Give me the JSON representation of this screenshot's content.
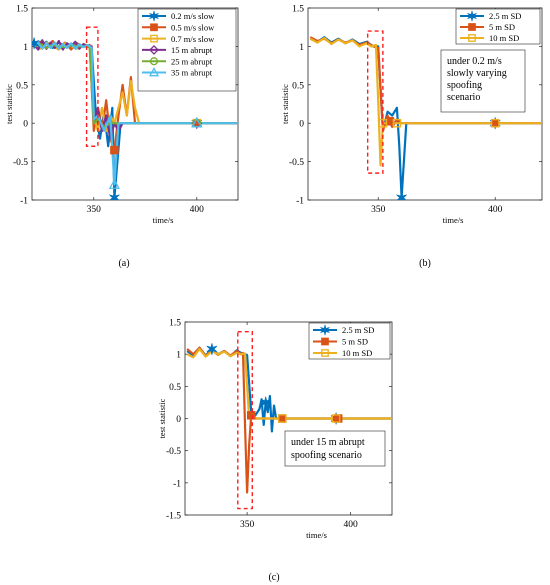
{
  "panels": [
    {
      "caption": "(a)",
      "ylabel": "test statistic",
      "xlabel": "time/s",
      "xlim": [
        320,
        420
      ],
      "ylim": [
        -1,
        1.5
      ],
      "xticks": [
        350,
        400
      ],
      "yticks": [
        -1,
        -0.5,
        0,
        0.5,
        1,
        1.5
      ],
      "ytick_labels": [
        "-1",
        "-0.5",
        "0",
        "0.5",
        "1",
        "1.5"
      ],
      "xtick_labels": [
        "350",
        "400"
      ],
      "highlight_box": {
        "x": [
          346.5,
          352
        ],
        "y": [
          -0.3,
          1.25
        ]
      },
      "legend": {
        "position": "top-right"
      },
      "annotation": [],
      "series": [
        {
          "name": "0.2 m/s slow",
          "color": "#0072BD",
          "marker": "star",
          "x": [
            321,
            324,
            327,
            330,
            333,
            336,
            339,
            342,
            345,
            348,
            349,
            351,
            353,
            355,
            357,
            359,
            360,
            363,
            366,
            372,
            380,
            390,
            400,
            410,
            420
          ],
          "y": [
            1.04,
            1.0,
            1.06,
            0.98,
            1.05,
            1.0,
            1.03,
            0.98,
            1.02,
            0.99,
            0.98,
            0.1,
            -0.2,
            0.15,
            -0.3,
            0.2,
            -0.97,
            0.0,
            0.0,
            0.0,
            0.0,
            0.0,
            0.0,
            0.0,
            0.0
          ],
          "marker_x": [
            321,
            360,
            400
          ]
        },
        {
          "name": "0.5 m/s slow",
          "color": "#D95319",
          "marker": "square",
          "x": [
            321,
            324,
            327,
            330,
            333,
            336,
            339,
            342,
            345,
            348,
            350,
            352,
            354,
            356,
            358,
            360,
            362,
            364,
            366,
            368,
            370,
            400,
            420
          ],
          "y": [
            1.0,
            1.06,
            0.97,
            1.07,
            0.99,
            1.05,
            0.96,
            1.04,
            1.0,
            1.02,
            -0.1,
            0.2,
            -0.1,
            0.3,
            -0.2,
            -0.35,
            0.1,
            0.5,
            0.1,
            0.6,
            0.0,
            0.0,
            0.0
          ],
          "marker_x": [
            360,
            400
          ]
        },
        {
          "name": "0.7 m/s slow",
          "color": "#EDB120",
          "marker": "square-open",
          "x": [
            321,
            324,
            327,
            330,
            333,
            336,
            339,
            342,
            345,
            348,
            350,
            352,
            354,
            356,
            358,
            360,
            362,
            364,
            366,
            368,
            370,
            372,
            400,
            420
          ],
          "y": [
            1.0,
            0.97,
            1.05,
            1.0,
            0.96,
            1.04,
            1.0,
            0.97,
            1.03,
            1.0,
            0.1,
            -0.1,
            0.2,
            -0.1,
            0.1,
            0.0,
            0.2,
            0.4,
            0.1,
            0.55,
            0.2,
            0.0,
            0.0,
            0.0
          ],
          "marker_x": [
            400
          ]
        },
        {
          "name": "15 m abrupt",
          "color": "#7E2F8E",
          "marker": "diamond-open",
          "x": [
            321,
            323,
            325,
            327,
            329,
            331,
            333,
            335,
            337,
            339,
            341,
            343,
            345,
            347,
            349,
            350,
            352,
            354,
            356,
            358,
            360,
            362,
            364,
            400,
            420
          ],
          "y": [
            1.02,
            0.96,
            1.08,
            0.97,
            1.05,
            0.98,
            1.07,
            0.96,
            1.04,
            1.0,
            1.06,
            0.97,
            1.03,
            1.0,
            1.0,
            0.0,
            0.2,
            -0.1,
            0.1,
            -0.2,
            0.0,
            -0.1,
            0.0,
            0.0,
            0.0
          ],
          "marker_x": [
            400
          ]
        },
        {
          "name": "25 m abrupt",
          "color": "#77AC30",
          "marker": "circle-open",
          "x": [
            321,
            324,
            327,
            330,
            333,
            336,
            339,
            342,
            345,
            348,
            350,
            352,
            355,
            358,
            361,
            364,
            400,
            420
          ],
          "y": [
            1.0,
            1.03,
            0.98,
            1.02,
            1.0,
            0.99,
            1.01,
            1.0,
            1.0,
            0.99,
            0.0,
            0.05,
            -0.05,
            0.0,
            0.0,
            0.0,
            0.0,
            0.0
          ],
          "marker_x": [
            400
          ]
        },
        {
          "name": "35 m abrupt",
          "color": "#4DBEEE",
          "marker": "triangle-open",
          "x": [
            321,
            323,
            325,
            327,
            329,
            331,
            333,
            335,
            337,
            339,
            341,
            343,
            345,
            347,
            349,
            350,
            352,
            355,
            358,
            360,
            362,
            365,
            368,
            400,
            420
          ],
          "y": [
            1.0,
            1.05,
            0.97,
            1.04,
            0.98,
            1.05,
            0.97,
            1.03,
            0.98,
            1.04,
            0.97,
            1.03,
            0.99,
            1.02,
            0.98,
            0.05,
            0.1,
            -0.1,
            0.1,
            -0.8,
            0.0,
            0.0,
            0.0,
            0.0,
            0.0
          ],
          "marker_x": [
            360,
            400
          ]
        }
      ]
    },
    {
      "caption": "(b)",
      "ylabel": "test statistic",
      "xlabel": "time/s",
      "xlim": [
        320,
        420
      ],
      "ylim": [
        -1,
        1.5
      ],
      "xticks": [
        350,
        400
      ],
      "yticks": [
        -1,
        -0.5,
        0,
        0.5,
        1,
        1.5
      ],
      "ytick_labels": [
        "-1",
        "-0.5",
        "0",
        "0.5",
        "1",
        "1.5"
      ],
      "xtick_labels": [
        "350",
        "400"
      ],
      "highlight_box": {
        "x": [
          345.5,
          352
        ],
        "y": [
          -0.65,
          1.2
        ]
      },
      "legend": {
        "position": "top-right"
      },
      "annotation": [
        "under 0.2 m/s",
        "slowly varying",
        "spoofing",
        "scenario"
      ],
      "series": [
        {
          "name": "2.5 m SD",
          "color": "#0072BD",
          "marker": "star",
          "x": [
            321,
            324,
            327,
            330,
            333,
            336,
            339,
            342,
            345,
            348,
            350,
            352,
            354,
            356,
            358,
            359,
            360,
            362,
            366,
            372,
            390,
            400,
            410,
            420
          ],
          "y": [
            1.1,
            1.06,
            1.12,
            1.05,
            1.1,
            1.04,
            1.09,
            1.03,
            1.06,
            1.0,
            1.0,
            -0.1,
            0.15,
            0.1,
            0.2,
            -0.3,
            -0.97,
            0.0,
            0.0,
            0.0,
            0.0,
            0.0,
            0.0,
            0.0
          ],
          "marker_x": [
            360,
            400
          ]
        },
        {
          "name": "5 m SD",
          "color": "#D95319",
          "marker": "square",
          "x": [
            321,
            324,
            327,
            330,
            333,
            336,
            339,
            342,
            345,
            348,
            350,
            352,
            354,
            356,
            358,
            360,
            366,
            372,
            390,
            400,
            420
          ],
          "y": [
            1.12,
            1.07,
            1.1,
            1.04,
            1.09,
            1.05,
            1.08,
            1.02,
            1.05,
            1.0,
            0.98,
            -0.1,
            0.1,
            -0.05,
            0.05,
            0.0,
            0.0,
            0.0,
            0.0,
            0.0,
            0.0
          ],
          "marker_x": [
            355,
            400
          ]
        },
        {
          "name": "10 m SD",
          "color": "#EDB120",
          "marker": "square-open",
          "x": [
            321,
            324,
            327,
            330,
            333,
            336,
            339,
            342,
            345,
            347,
            349,
            350,
            351,
            352,
            354,
            356,
            358,
            360,
            366,
            380,
            400,
            420
          ],
          "y": [
            1.1,
            1.05,
            1.11,
            1.03,
            1.09,
            1.04,
            1.08,
            1.0,
            1.04,
            1.0,
            1.02,
            0.3,
            -0.55,
            0.0,
            0.0,
            0.0,
            0.0,
            0.0,
            0.0,
            0.0,
            0.0,
            0.0
          ],
          "marker_x": [
            352,
            358,
            400
          ]
        }
      ]
    },
    {
      "caption": "(c)",
      "ylabel": "test statistic",
      "xlabel": "time/s",
      "xlim": [
        320,
        420
      ],
      "ylim": [
        -1.5,
        1.5
      ],
      "xticks": [
        350,
        400
      ],
      "yticks": [
        -1.5,
        -1,
        -0.5,
        0,
        0.5,
        1,
        1.5
      ],
      "ytick_labels": [
        "-1.5",
        "-1",
        "-0.5",
        "0",
        "0.5",
        "1",
        "1.5"
      ],
      "xtick_labels": [
        "350",
        "400"
      ],
      "highlight_box": {
        "x": [
          345.5,
          352.5
        ],
        "y": [
          -1.4,
          1.35
        ]
      },
      "legend": {
        "position": "top-right"
      },
      "annotation": [
        "under 15 m abrupt",
        "spoofing scenario"
      ],
      "series": [
        {
          "name": "2.5 m SD",
          "color": "#0072BD",
          "marker": "star",
          "x": [
            321,
            324,
            327,
            330,
            333,
            336,
            339,
            342,
            345,
            348,
            350,
            352,
            354,
            356,
            357,
            358,
            359,
            360,
            361,
            362,
            363,
            364,
            366,
            370,
            380,
            390,
            393,
            400,
            410,
            420
          ],
          "y": [
            1.05,
            0.98,
            1.1,
            0.98,
            1.08,
            1.0,
            1.05,
            0.97,
            1.06,
            1.0,
            0.99,
            0.1,
            0.05,
            0.15,
            0.3,
            -0.1,
            0.25,
            0.1,
            0.35,
            -0.2,
            0.2,
            0.0,
            0.0,
            0.0,
            0.0,
            0.0,
            0.0,
            0.0,
            0.0,
            0.0
          ],
          "marker_x": [
            333,
            359,
            393
          ]
        },
        {
          "name": "5 m SD",
          "color": "#D95319",
          "marker": "square",
          "x": [
            321,
            324,
            327,
            330,
            333,
            336,
            339,
            342,
            345,
            347,
            348,
            349,
            350,
            351,
            352,
            354,
            356,
            358,
            360,
            366,
            380,
            400,
            420
          ],
          "y": [
            1.08,
            1.0,
            1.1,
            0.97,
            1.06,
            0.99,
            1.05,
            0.98,
            1.05,
            1.0,
            1.02,
            -0.1,
            -1.15,
            -0.4,
            0.05,
            0.0,
            0.0,
            0.0,
            0.0,
            0.0,
            0.0,
            0.0,
            0.0
          ],
          "marker_x": [
            352,
            367,
            394
          ]
        },
        {
          "name": "10 m SD",
          "color": "#EDB120",
          "marker": "square-open",
          "x": [
            321,
            324,
            327,
            330,
            333,
            336,
            339,
            342,
            345,
            347,
            349,
            350,
            351,
            352,
            354,
            356,
            358,
            360,
            366,
            380,
            400,
            420
          ],
          "y": [
            1.0,
            0.95,
            1.08,
            0.96,
            1.05,
            1.0,
            1.04,
            0.97,
            1.02,
            1.0,
            1.01,
            0.5,
            0.0,
            0.0,
            0.0,
            0.0,
            0.0,
            0.0,
            0.0,
            0.0,
            0.0,
            0.0
          ],
          "marker_x": [
            367,
            393
          ]
        }
      ]
    }
  ],
  "chart_data": [
    {
      "type": "line",
      "xlabel": "time/s",
      "ylabel": "test statistic",
      "xlim": [
        320,
        420
      ],
      "ylim": [
        -1,
        1.5
      ],
      "series": [
        "0.2 m/s slow",
        "0.5 m/s slow",
        "0.7 m/s slow",
        "15 m abrupt",
        "25 m abrupt",
        "35 m abrupt"
      ]
    },
    {
      "type": "line",
      "xlabel": "time/s",
      "ylabel": "test statistic",
      "xlim": [
        320,
        420
      ],
      "ylim": [
        -1,
        1.5
      ],
      "series": [
        "2.5 m SD",
        "5 m SD",
        "10 m SD"
      ]
    },
    {
      "type": "line",
      "xlabel": "time/s",
      "ylabel": "test statistic",
      "xlim": [
        320,
        420
      ],
      "ylim": [
        -1.5,
        1.5
      ],
      "series": [
        "2.5 m SD",
        "5 m SD",
        "10 m SD"
      ]
    }
  ]
}
